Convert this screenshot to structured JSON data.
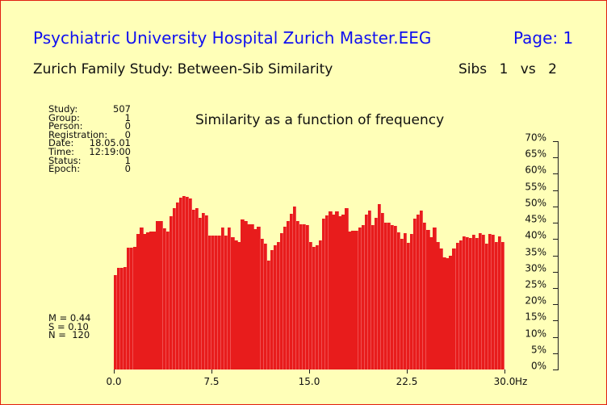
{
  "header": {
    "title": "Psychiatric University Hospital Zurich Master.EEG",
    "page_label": "Page: 1",
    "subtitle": "Zurich Family Study: Between-Sib Similarity",
    "sibs": "Sibs 1 vs 2"
  },
  "info": [
    {
      "label": "Study:",
      "value": "507"
    },
    {
      "label": "Group:",
      "value": "1"
    },
    {
      "label": "Person:",
      "value": "0"
    },
    {
      "label": "Registration:",
      "value": "0"
    },
    {
      "label": "Date:",
      "value": "18.05.01"
    },
    {
      "label": "Time:",
      "value": "12:19:00"
    },
    {
      "label": "Status:",
      "value": "1"
    },
    {
      "label": "Epoch:",
      "value": "0"
    }
  ],
  "stats": {
    "m": "M = 0.44",
    "s": "S = 0.10",
    "n": "N =  120"
  },
  "chart_data": {
    "type": "bar",
    "title": "Similarity as a function of frequency",
    "xlabel": "Hz",
    "ylabel": "",
    "xlim": [
      0,
      30
    ],
    "ylim": [
      0,
      70
    ],
    "x_ticks": [
      "0.0",
      "7.5",
      "15.0",
      "22.5",
      "30.0"
    ],
    "y_ticks": [
      "0%",
      "5%",
      "10%",
      "15%",
      "20%",
      "25%",
      "30%",
      "35%",
      "40%",
      "45%",
      "50%",
      "55%",
      "60%",
      "65%",
      "70%"
    ],
    "y_axis_position": "right",
    "grid": false,
    "legend": null,
    "bar_color": "#e81c1c",
    "bin_width_hz": 0.25,
    "values": [
      29.0,
      31.2,
      31.2,
      31.5,
      37.4,
      37.4,
      37.6,
      41.5,
      43.5,
      41.5,
      42.0,
      42.2,
      42.2,
      45.4,
      45.4,
      43.2,
      42.2,
      46.9,
      49.4,
      51.1,
      52.6,
      53.1,
      52.9,
      52.4,
      49.0,
      49.4,
      46.5,
      48.0,
      47.2,
      41.0,
      41.0,
      41.0,
      41.0,
      43.5,
      41.0,
      43.5,
      40.5,
      39.6,
      39.0,
      46.0,
      45.4,
      44.5,
      44.5,
      43.0,
      43.7,
      40.0,
      38.5,
      33.5,
      36.7,
      38.2,
      39.0,
      41.9,
      43.7,
      45.4,
      47.7,
      50.0,
      45.4,
      44.5,
      44.5,
      44.2,
      39.2,
      37.7,
      38.2,
      39.6,
      46.3,
      47.2,
      48.6,
      47.6,
      48.5,
      47.0,
      47.6,
      49.5,
      42.2,
      42.5,
      42.5,
      43.5,
      44.2,
      47.5,
      48.8,
      44.2,
      46.6,
      50.6,
      48.0,
      45.0,
      45.0,
      44.4,
      44.0,
      42.0,
      40.0,
      41.8,
      38.8,
      41.5,
      46.2,
      47.6,
      48.7,
      45.0,
      42.9,
      40.6,
      43.5,
      39.2,
      37.0,
      34.4,
      34.2,
      35.0,
      37.0,
      38.8,
      39.7,
      40.8,
      40.6,
      40.3,
      41.2,
      40.3,
      41.9,
      41.3,
      38.5,
      41.5,
      41.2,
      39.2,
      40.8,
      39.0
    ],
    "stats": {
      "M": 0.44,
      "S": 0.1,
      "N": 120
    }
  }
}
